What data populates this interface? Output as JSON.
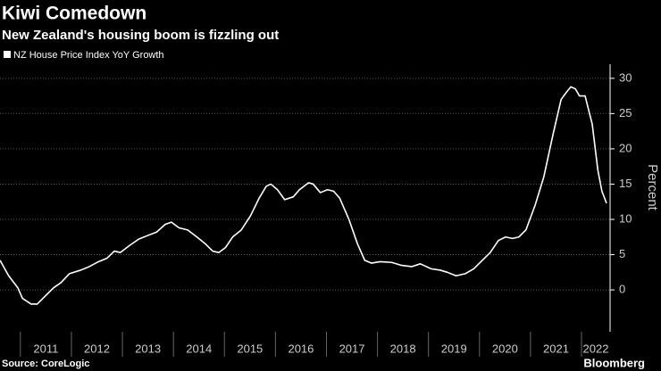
{
  "chart_data": {
    "type": "line",
    "title": "Kiwi Comedown",
    "subtitle": "New Zealand's housing boom is fizzling out",
    "y_axis_label": "Percent",
    "source": "Source: CoreLogic",
    "brand": "Bloomberg",
    "series": [
      {
        "name": "NZ House Price Index YoY Growth",
        "color": "#ffffff",
        "x": [
          2010.6,
          2010.77,
          2010.95,
          2011.04,
          2011.21,
          2011.33,
          2011.47,
          2011.65,
          2011.79,
          2011.96,
          2012.18,
          2012.35,
          2012.53,
          2012.7,
          2012.84,
          2012.96,
          2013.14,
          2013.32,
          2013.49,
          2013.67,
          2013.84,
          2013.96,
          2014.11,
          2014.28,
          2014.46,
          2014.63,
          2014.77,
          2014.89,
          2015.02,
          2015.16,
          2015.33,
          2015.51,
          2015.68,
          2015.82,
          2015.91,
          2016.04,
          2016.18,
          2016.35,
          2016.47,
          2016.65,
          2016.74,
          2016.88,
          2017.02,
          2017.14,
          2017.26,
          2017.44,
          2017.61,
          2017.75,
          2017.88,
          2018.05,
          2018.28,
          2018.46,
          2018.67,
          2018.84,
          2019.05,
          2019.23,
          2019.37,
          2019.54,
          2019.72,
          2019.89,
          2020.07,
          2020.21,
          2020.37,
          2020.51,
          2020.65,
          2020.77,
          2020.91,
          2021.09,
          2021.26,
          2021.44,
          2021.6,
          2021.68,
          2021.79,
          2021.88,
          2021.96,
          2022.07,
          2022.21,
          2022.32,
          2022.4,
          2022.49
        ],
        "values": [
          4.2,
          2.0,
          0.3,
          -1.2,
          -2.0,
          -2.0,
          -1.0,
          0.3,
          1.0,
          2.3,
          2.8,
          3.3,
          4.0,
          4.5,
          5.5,
          5.3,
          6.3,
          7.2,
          7.7,
          8.2,
          9.3,
          9.6,
          8.8,
          8.5,
          7.5,
          6.5,
          5.5,
          5.3,
          6.0,
          7.5,
          8.5,
          10.5,
          13.0,
          14.7,
          15.0,
          14.2,
          12.8,
          13.2,
          14.2,
          15.2,
          15.0,
          13.8,
          14.2,
          14.0,
          13.0,
          10.0,
          6.5,
          4.2,
          3.8,
          4.0,
          3.9,
          3.5,
          3.3,
          3.7,
          3.0,
          2.8,
          2.5,
          2.0,
          2.3,
          3.0,
          4.3,
          5.3,
          7.0,
          7.5,
          7.3,
          7.5,
          8.5,
          12.0,
          16.0,
          22.0,
          27.0,
          27.8,
          28.8,
          28.5,
          27.5,
          27.5,
          23.5,
          17.0,
          14.0,
          12.3
        ]
      }
    ],
    "xlim": [
      2010.6,
      2022.56
    ],
    "xticks": [
      2011,
      2012,
      2013,
      2014,
      2015,
      2016,
      2017,
      2018,
      2019,
      2020,
      2021,
      2022
    ],
    "ylim": [
      -5.3,
      32
    ],
    "yticks": [
      0,
      5,
      10,
      15,
      20,
      25,
      30
    ],
    "grid": true
  }
}
